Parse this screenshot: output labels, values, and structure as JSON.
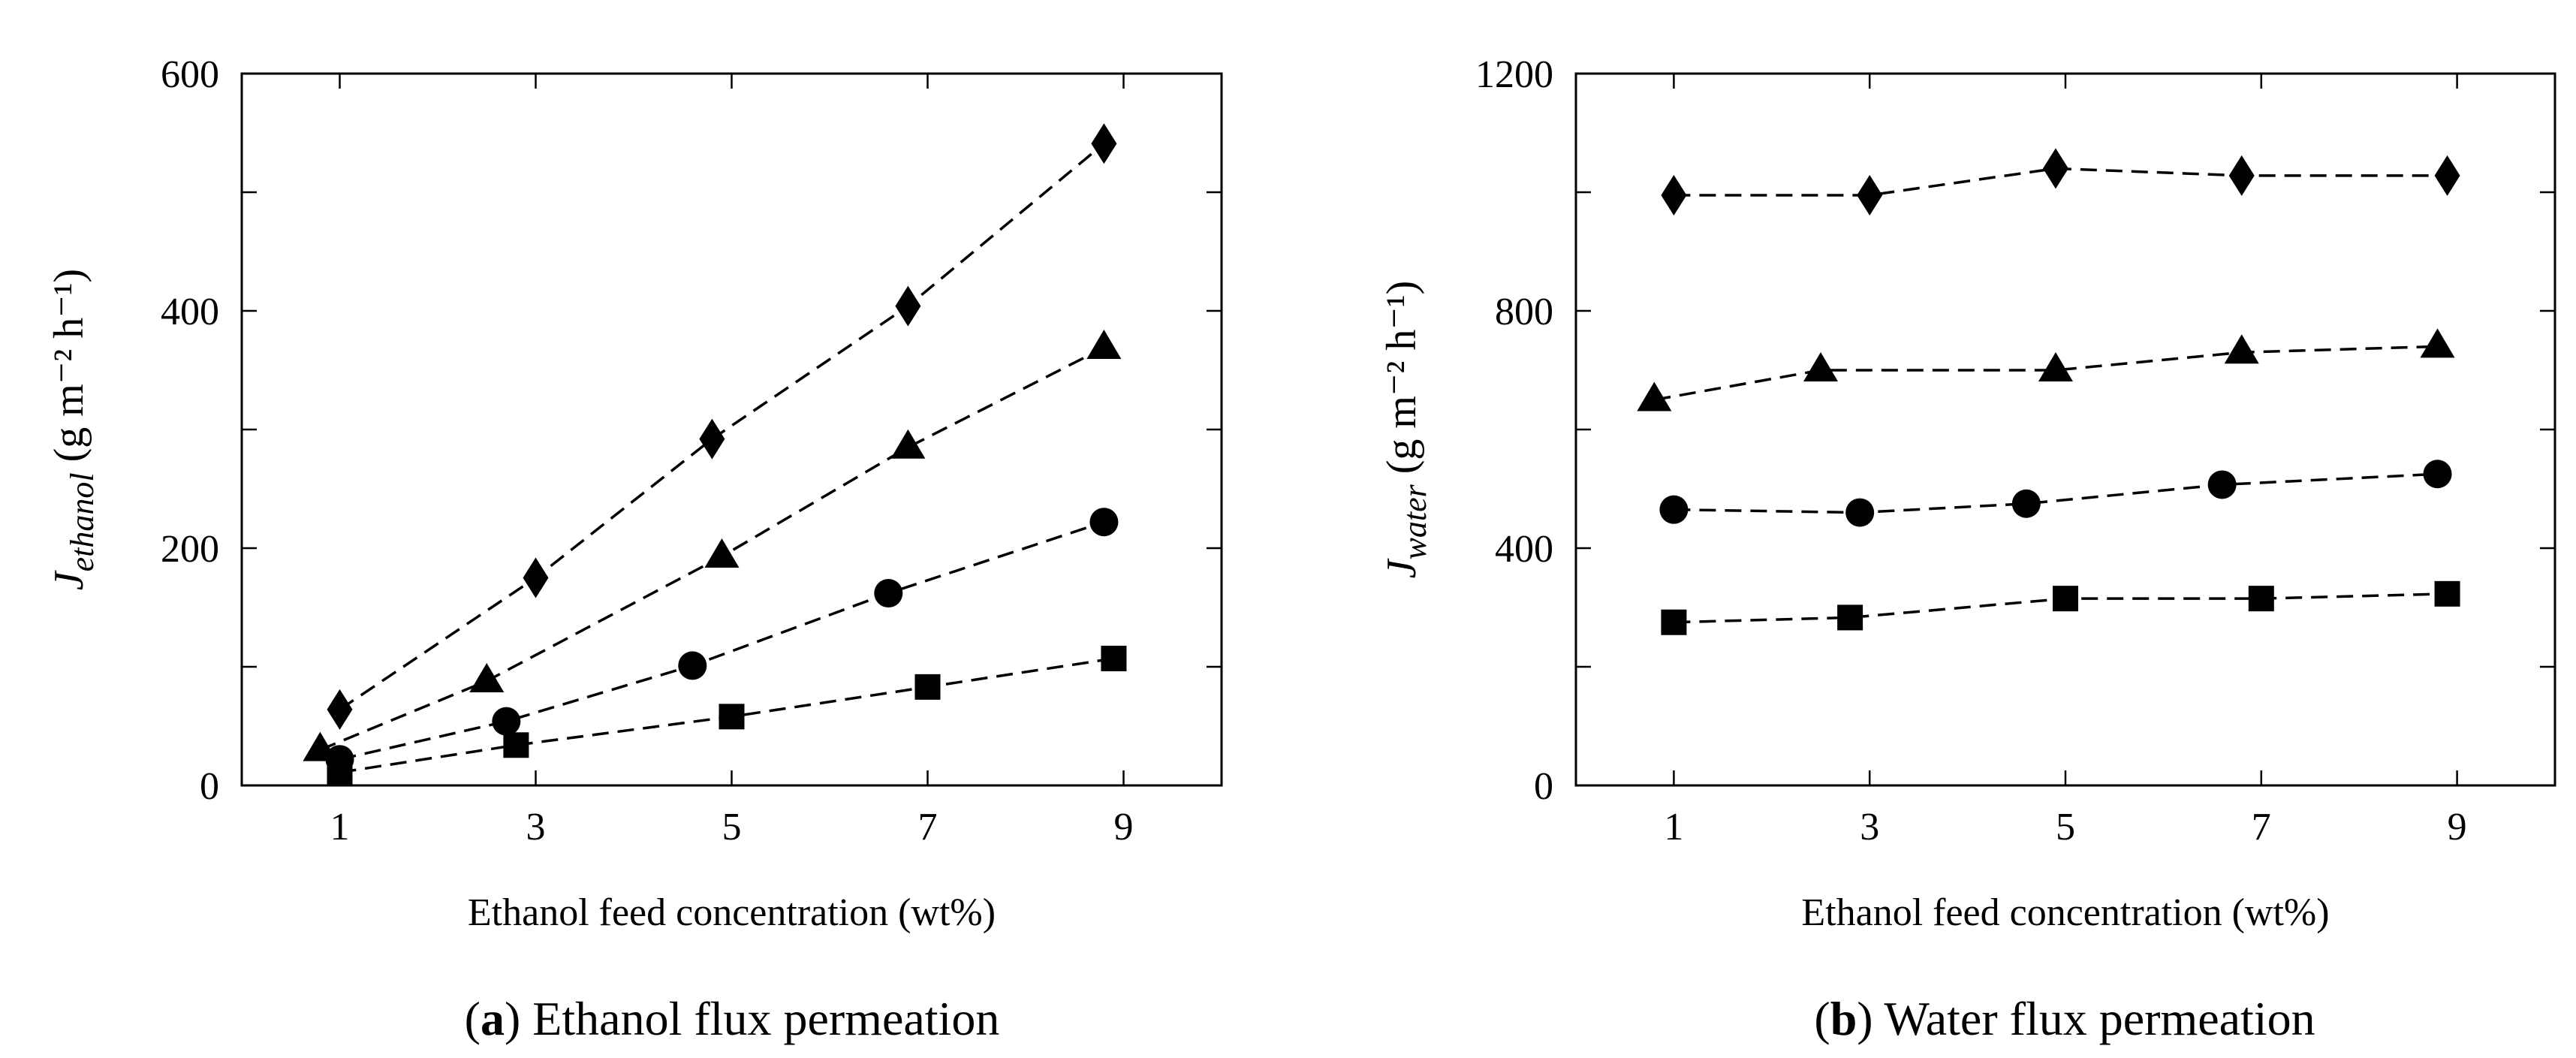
{
  "chart_data": [
    {
      "type": "line",
      "panel": "a",
      "caption_label": "a",
      "caption_text": "Ethanol flux permeation",
      "xlabel": "Ethanol feed concentration (wt%)",
      "ylabel_main": "J",
      "ylabel_sub": "ethanol",
      "ylabel_unit": "(g m⁻² h⁻¹)",
      "xlim": [
        0,
        10
      ],
      "ylim": [
        0,
        600
      ],
      "xticks": [
        1,
        3,
        5,
        7,
        9
      ],
      "yticks": [
        0,
        200,
        400,
        600
      ],
      "minor_yticks": [
        100,
        300,
        500
      ],
      "series": [
        {
          "name": "diamond",
          "marker": "diamond",
          "x": [
            1.0,
            3.0,
            4.8,
            6.8,
            8.8
          ],
          "y": [
            64,
            175,
            292,
            404,
            541
          ]
        },
        {
          "name": "triangle",
          "marker": "triangle",
          "x": [
            0.8,
            2.5,
            4.9,
            6.8,
            8.8
          ],
          "y": [
            30,
            88,
            193,
            285,
            369
          ]
        },
        {
          "name": "circle",
          "marker": "circle",
          "x": [
            1.0,
            2.7,
            4.6,
            6.6,
            8.8
          ],
          "y": [
            22,
            54,
            101,
            162,
            222
          ]
        },
        {
          "name": "square",
          "marker": "square",
          "x": [
            1.0,
            2.8,
            5.0,
            7.0,
            8.9
          ],
          "y": [
            11,
            34,
            58,
            83,
            107
          ]
        }
      ]
    },
    {
      "type": "line",
      "panel": "b",
      "caption_label": "b",
      "caption_text": "Water flux permeation",
      "xlabel": "Ethanol feed concentration (wt%)",
      "ylabel_main": "J",
      "ylabel_sub": "water",
      "ylabel_unit": "(g m⁻² h⁻¹)",
      "xlim": [
        0,
        10
      ],
      "ylim": [
        0,
        1200
      ],
      "xticks": [
        1,
        3,
        5,
        7,
        9
      ],
      "yticks": [
        0,
        400,
        800,
        1200
      ],
      "minor_yticks": [
        200,
        600,
        1000
      ],
      "series": [
        {
          "name": "diamond",
          "marker": "diamond",
          "x": [
            1.0,
            3.0,
            4.9,
            6.8,
            8.9
          ],
          "y": [
            995,
            995,
            1040,
            1028,
            1028
          ]
        },
        {
          "name": "triangle",
          "marker": "triangle",
          "x": [
            0.8,
            2.5,
            4.9,
            6.8,
            8.8
          ],
          "y": [
            650,
            700,
            700,
            730,
            740
          ]
        },
        {
          "name": "circle",
          "marker": "circle",
          "x": [
            1.0,
            2.9,
            4.6,
            6.6,
            8.8
          ],
          "y": [
            465,
            460,
            475,
            507,
            525
          ]
        },
        {
          "name": "square",
          "marker": "square",
          "x": [
            1.0,
            2.8,
            5.0,
            7.0,
            8.9
          ],
          "y": [
            275,
            283,
            315,
            315,
            323
          ]
        }
      ]
    }
  ]
}
